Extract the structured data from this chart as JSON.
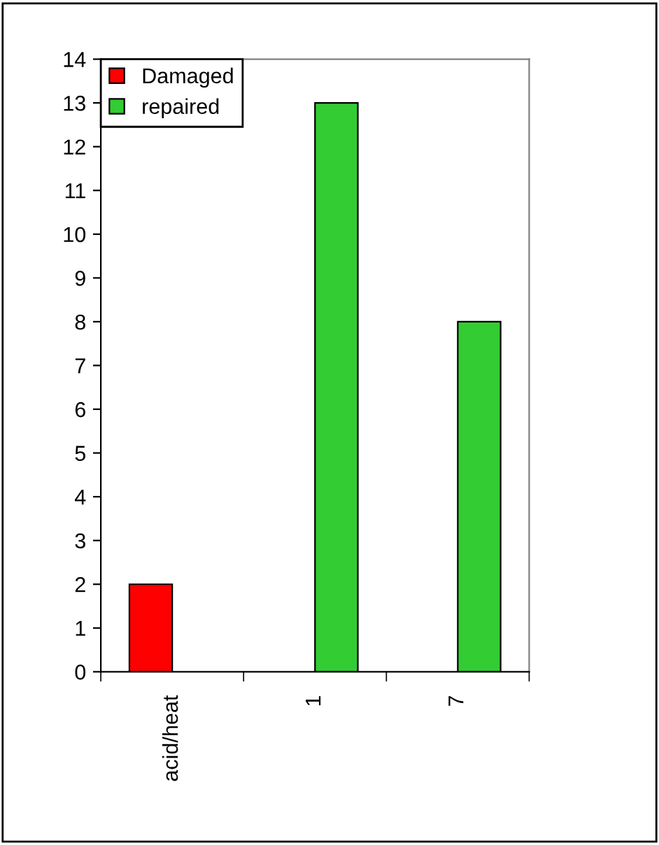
{
  "chart_data": {
    "type": "bar",
    "categories": [
      "acid/heat",
      "1",
      "7"
    ],
    "series": [
      {
        "name": "Damaged",
        "color": "#ff0000",
        "values": [
          2,
          null,
          null
        ]
      },
      {
        "name": "repaired",
        "color": "#33cc33",
        "values": [
          null,
          13,
          8
        ]
      }
    ],
    "ylim": [
      0,
      14
    ],
    "yticks": [
      0,
      1,
      2,
      3,
      4,
      5,
      6,
      7,
      8,
      9,
      10,
      11,
      12,
      13,
      14
    ],
    "grid": false,
    "legend": "top left"
  }
}
